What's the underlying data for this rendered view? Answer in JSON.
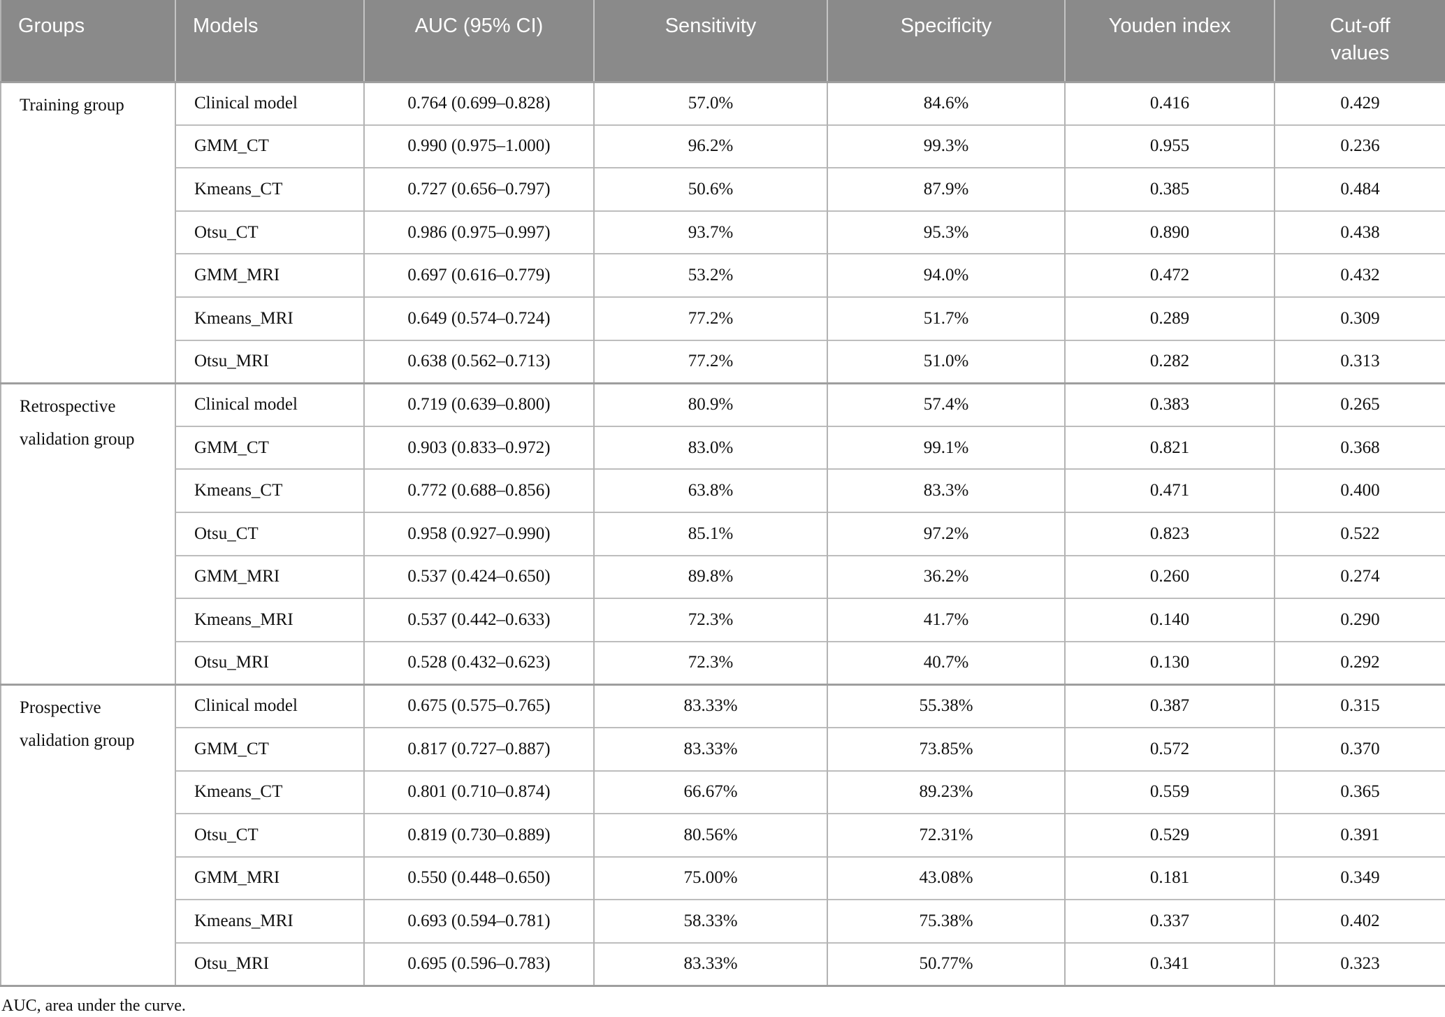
{
  "colors": {
    "header_bg": "#8a8a8a",
    "header_text": "#ffffff",
    "grid_line": "#b3b3b3",
    "group_line": "#9e9e9e"
  },
  "table": {
    "columns": [
      "Groups",
      "Models",
      "AUC (95% CI)",
      "Sensitivity",
      "Specificity",
      "Youden index",
      "Cut-off values"
    ],
    "groups": [
      {
        "name": "Training group",
        "rows": [
          {
            "model": "Clinical model",
            "auc": "0.764 (0.699–0.828)",
            "sensitivity": "57.0%",
            "specificity": "84.6%",
            "youden": "0.416",
            "cutoff": "0.429"
          },
          {
            "model": "GMM_CT",
            "auc": "0.990 (0.975–1.000)",
            "sensitivity": "96.2%",
            "specificity": "99.3%",
            "youden": "0.955",
            "cutoff": "0.236"
          },
          {
            "model": "Kmeans_CT",
            "auc": "0.727 (0.656–0.797)",
            "sensitivity": "50.6%",
            "specificity": "87.9%",
            "youden": "0.385",
            "cutoff": "0.484"
          },
          {
            "model": "Otsu_CT",
            "auc": "0.986 (0.975–0.997)",
            "sensitivity": "93.7%",
            "specificity": "95.3%",
            "youden": "0.890",
            "cutoff": "0.438"
          },
          {
            "model": "GMM_MRI",
            "auc": "0.697 (0.616–0.779)",
            "sensitivity": "53.2%",
            "specificity": "94.0%",
            "youden": "0.472",
            "cutoff": "0.432"
          },
          {
            "model": "Kmeans_MRI",
            "auc": "0.649 (0.574–0.724)",
            "sensitivity": "77.2%",
            "specificity": "51.7%",
            "youden": "0.289",
            "cutoff": "0.309"
          },
          {
            "model": "Otsu_MRI",
            "auc": "0.638 (0.562–0.713)",
            "sensitivity": "77.2%",
            "specificity": "51.0%",
            "youden": "0.282",
            "cutoff": "0.313"
          }
        ]
      },
      {
        "name": "Retrospective validation group",
        "rows": [
          {
            "model": "Clinical model",
            "auc": "0.719 (0.639–0.800)",
            "sensitivity": "80.9%",
            "specificity": "57.4%",
            "youden": "0.383",
            "cutoff": "0.265"
          },
          {
            "model": "GMM_CT",
            "auc": "0.903 (0.833–0.972)",
            "sensitivity": "83.0%",
            "specificity": "99.1%",
            "youden": "0.821",
            "cutoff": "0.368"
          },
          {
            "model": "Kmeans_CT",
            "auc": "0.772 (0.688–0.856)",
            "sensitivity": "63.8%",
            "specificity": "83.3%",
            "youden": "0.471",
            "cutoff": "0.400"
          },
          {
            "model": "Otsu_CT",
            "auc": "0.958 (0.927–0.990)",
            "sensitivity": "85.1%",
            "specificity": "97.2%",
            "youden": "0.823",
            "cutoff": "0.522"
          },
          {
            "model": "GMM_MRI",
            "auc": "0.537 (0.424–0.650)",
            "sensitivity": "89.8%",
            "specificity": "36.2%",
            "youden": "0.260",
            "cutoff": "0.274"
          },
          {
            "model": "Kmeans_MRI",
            "auc": "0.537 (0.442–0.633)",
            "sensitivity": "72.3%",
            "specificity": "41.7%",
            "youden": "0.140",
            "cutoff": "0.290"
          },
          {
            "model": "Otsu_MRI",
            "auc": "0.528 (0.432–0.623)",
            "sensitivity": "72.3%",
            "specificity": "40.7%",
            "youden": "0.130",
            "cutoff": "0.292"
          }
        ]
      },
      {
        "name": "Prospective validation group",
        "rows": [
          {
            "model": "Clinical model",
            "auc": "0.675 (0.575–0.765)",
            "sensitivity": "83.33%",
            "specificity": "55.38%",
            "youden": "0.387",
            "cutoff": "0.315"
          },
          {
            "model": "GMM_CT",
            "auc": "0.817 (0.727–0.887)",
            "sensitivity": "83.33%",
            "specificity": "73.85%",
            "youden": "0.572",
            "cutoff": "0.370"
          },
          {
            "model": "Kmeans_CT",
            "auc": "0.801 (0.710–0.874)",
            "sensitivity": "66.67%",
            "specificity": "89.23%",
            "youden": "0.559",
            "cutoff": "0.365"
          },
          {
            "model": "Otsu_CT",
            "auc": "0.819 (0.730–0.889)",
            "sensitivity": "80.56%",
            "specificity": "72.31%",
            "youden": "0.529",
            "cutoff": "0.391"
          },
          {
            "model": "GMM_MRI",
            "auc": "0.550 (0.448–0.650)",
            "sensitivity": "75.00%",
            "specificity": "43.08%",
            "youden": "0.181",
            "cutoff": "0.349"
          },
          {
            "model": "Kmeans_MRI",
            "auc": "0.693 (0.594–0.781)",
            "sensitivity": "58.33%",
            "specificity": "75.38%",
            "youden": "0.337",
            "cutoff": "0.402"
          },
          {
            "model": "Otsu_MRI",
            "auc": "0.695 (0.596–0.783)",
            "sensitivity": "83.33%",
            "specificity": "50.77%",
            "youden": "0.341",
            "cutoff": "0.323"
          }
        ]
      }
    ]
  },
  "footnote": "AUC, area under the curve."
}
